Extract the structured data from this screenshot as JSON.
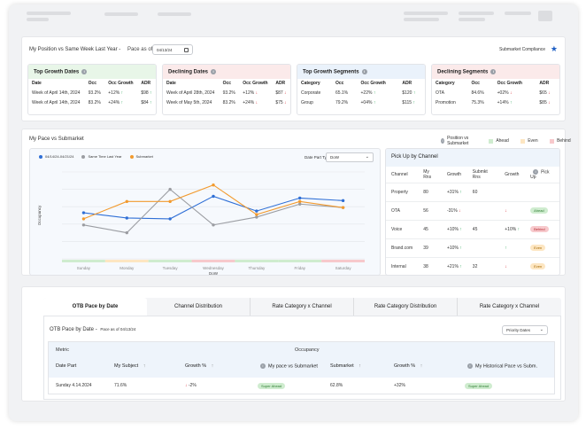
{
  "position": {
    "title_prefix": "My Position",
    "title_vs": "vs",
    "title_suffix": "Same Week Last Year -",
    "pace_label": "Pace as of",
    "pace_date": "04/13/24",
    "compliance_label": "Submarket Compliance",
    "cards": [
      {
        "title": "Top Growth Dates",
        "header_color": "#e8f6e8",
        "columns": [
          "Date",
          "Occ",
          "Occ Growth",
          "ADR"
        ],
        "rows": [
          {
            "name": "Week of April 14th, 2024",
            "occ": "93.2%",
            "growth": "+12%",
            "growth_dir": "up",
            "adr": "$98",
            "adr_dir": "up"
          },
          {
            "name": "Week of April 14th, 2024",
            "occ": "83.2%",
            "growth": "+24%",
            "growth_dir": "up",
            "adr": "$84",
            "adr_dir": "up"
          }
        ]
      },
      {
        "title": "Declining Dates",
        "header_color": "#fbeaea",
        "columns": [
          "Date",
          "Occ",
          "Occ Growth",
          "ADR"
        ],
        "rows": [
          {
            "name": "Week of April 28th, 2024",
            "occ": "93.2%",
            "growth": "+12%",
            "growth_dir": "down",
            "adr": "$87",
            "adr_dir": "down"
          },
          {
            "name": "Week of May 5th, 2024",
            "occ": "83.2%",
            "growth": "+24%",
            "growth_dir": "down",
            "adr": "$75",
            "adr_dir": "down"
          }
        ]
      },
      {
        "title": "Top Growth Segments",
        "header_color": "#eaf2fb",
        "columns": [
          "Category",
          "Occ",
          "Occ Growth",
          "ADR"
        ],
        "rows": [
          {
            "name": "Corporate",
            "occ": "65.1%",
            "growth": "+22%",
            "growth_dir": "up",
            "adr": "$120",
            "adr_dir": "up"
          },
          {
            "name": "Group",
            "occ": "79.2%",
            "growth": "+04%",
            "growth_dir": "up",
            "adr": "$115",
            "adr_dir": "up"
          }
        ]
      },
      {
        "title": "Declining Segments",
        "header_color": "#fbeaea",
        "columns": [
          "Category",
          "Occ",
          "Occ Growth",
          "ADR"
        ],
        "rows": [
          {
            "name": "OTA",
            "occ": "84.6%",
            "growth": "+02%",
            "growth_dir": "down",
            "adr": "$65",
            "adr_dir": "down"
          },
          {
            "name": "Promotion",
            "occ": "75.3%",
            "growth": "+14%",
            "growth_dir": "up",
            "adr": "$85",
            "adr_dir": "down"
          }
        ]
      }
    ]
  },
  "pace": {
    "title_prefix": "My Pace",
    "title_vs": "vs",
    "title_suffix": "Submarket",
    "pos_label": "Position vs Submarket",
    "legend_ahead": "Ahead",
    "legend_even": "Even",
    "legend_behind": "Behind",
    "colors": {
      "ahead": "#cfeccf",
      "even": "#fde6c2",
      "behind": "#f7c9cc"
    }
  },
  "chart_data": {
    "type": "line",
    "ylabel": "Occupancy",
    "xlabel": "DoW",
    "date_part_label": "Date Part Type",
    "date_part_value": "DoW",
    "categories": [
      "Sunday",
      "Monday",
      "Tuesday",
      "Wednesday",
      "Thursday",
      "Friday",
      "Saturday"
    ],
    "ylim": [
      0,
      100
    ],
    "grid": true,
    "legend_position": "top-left",
    "series": [
      {
        "name": "04/14/24-04/21/24",
        "color": "#2f6fd6",
        "values": [
          53,
          47,
          46,
          72,
          55,
          70,
          67
        ]
      },
      {
        "name": "Same Time Last Year",
        "color": "#9b9da2",
        "values": [
          39,
          30,
          80,
          39,
          48,
          63,
          59
        ]
      },
      {
        "name": "Submarket",
        "color": "#f29a2e",
        "values": [
          46,
          66,
          66,
          85,
          51,
          66,
          59
        ]
      }
    ],
    "band_states": [
      "ahead",
      "even",
      "ahead",
      "behind",
      "ahead",
      "ahead",
      "behind"
    ]
  },
  "pickup": {
    "title": "Pick Up by Channel",
    "columns": [
      "Channel",
      "My Rns",
      "Growth",
      "Submkt Rns",
      "Growth",
      "Pick Up"
    ],
    "rows": [
      {
        "channel": "Property",
        "rns": "80",
        "growth": "+31%",
        "growth_dir": "up",
        "sub_rns": "60",
        "sub_growth": "",
        "sub_dir": "",
        "pickup": ""
      },
      {
        "channel": "OTA",
        "rns": "56",
        "growth": "-31%",
        "growth_dir": "down",
        "sub_rns": "",
        "sub_growth": "",
        "sub_dir": "down",
        "pickup": "Ahead"
      },
      {
        "channel": "Voice",
        "rns": "45",
        "growth": "+10%",
        "growth_dir": "up",
        "sub_rns": "45",
        "sub_growth": "+10%",
        "sub_dir": "up",
        "pickup": "Behind"
      },
      {
        "channel": "Brand.com",
        "rns": "39",
        "growth": "+10%",
        "growth_dir": "up",
        "sub_rns": "",
        "sub_growth": "",
        "sub_dir": "up",
        "pickup": "Even"
      },
      {
        "channel": "Internal",
        "rns": "38",
        "growth": "+21%",
        "growth_dir": "up",
        "sub_rns": "32",
        "sub_growth": "",
        "sub_dir": "down",
        "pickup": "Even"
      }
    ]
  },
  "otb": {
    "tabs": [
      "OTB Pace by Date",
      "Channel Distribution",
      "Rate Category x Channel",
      "Rate Category Distribution",
      "Rate Category x Channel"
    ],
    "title": "OTB Pace by Date -",
    "pace_label": "Pace as of 04/13/24",
    "priority_label": "Priority Dates",
    "group_metric": "Metric",
    "group_occupancy": "Occupancy",
    "columns": [
      "Date Part",
      "My Subject",
      "Growth %",
      "My pace vs Submarket",
      "Submarket",
      "Growth %",
      "My Historical Pace vs Subm."
    ],
    "row": {
      "date": "Sunday 4.14.2024",
      "subject": "71.6%",
      "growth": "-2%",
      "pace": "Super Ahead",
      "submarket": "62.8%",
      "growth2": "+32%",
      "hist": "Super Ahead"
    }
  }
}
